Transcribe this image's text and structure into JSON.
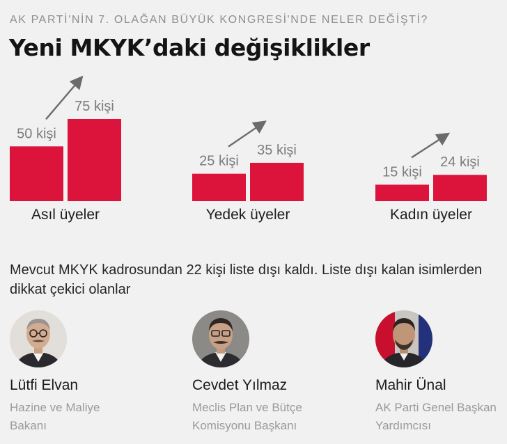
{
  "kicker": "AK PARTİ'NİN 7. OLAĞAN BÜYÜK KONGRESİ'NDE NELER DEĞİŞTİ?",
  "headline": "Yeni MKYK’daki değişiklikler",
  "colors": {
    "bar": "#dc143c",
    "arrow": "#6b6b6b",
    "label": "#7c7c7c",
    "group_label": "#1e1e1e"
  },
  "chart_data": {
    "type": "bar",
    "categories": [
      "Asıl üyeler",
      "Yedek üyeler",
      "Kadın üyeler"
    ],
    "series": [
      {
        "values": [
          50,
          25,
          15
        ],
        "labels": [
          "50 kişi",
          "25 kişi",
          "15 kişi"
        ]
      },
      {
        "values": [
          75,
          35,
          24
        ],
        "labels": [
          "75 kişi",
          "35 kişi",
          "24 kişi"
        ]
      }
    ],
    "annotations": [
      "increase-arrow",
      "increase-arrow",
      "increase-arrow"
    ],
    "ylim": [
      0,
      75
    ],
    "grid": false,
    "legend": "none"
  },
  "intro": "Mevcut MKYK kadrosundan 22 kişi liste dışı kaldı. Liste dışı kalan isimlerden dikkat çekici olanlar",
  "people": [
    {
      "name": "Lütfi Elvan",
      "role": "Hazine ve Maliye Bakanı",
      "icon": "portrait-icon"
    },
    {
      "name": "Cevdet Yılmaz",
      "role": "Meclis Plan ve Bütçe Komisyonu Başkanı",
      "icon": "portrait-icon"
    },
    {
      "name": "Mahir Ünal",
      "role": "AK Parti Genel Başkan Yardımcısı",
      "icon": "portrait-icon"
    }
  ]
}
